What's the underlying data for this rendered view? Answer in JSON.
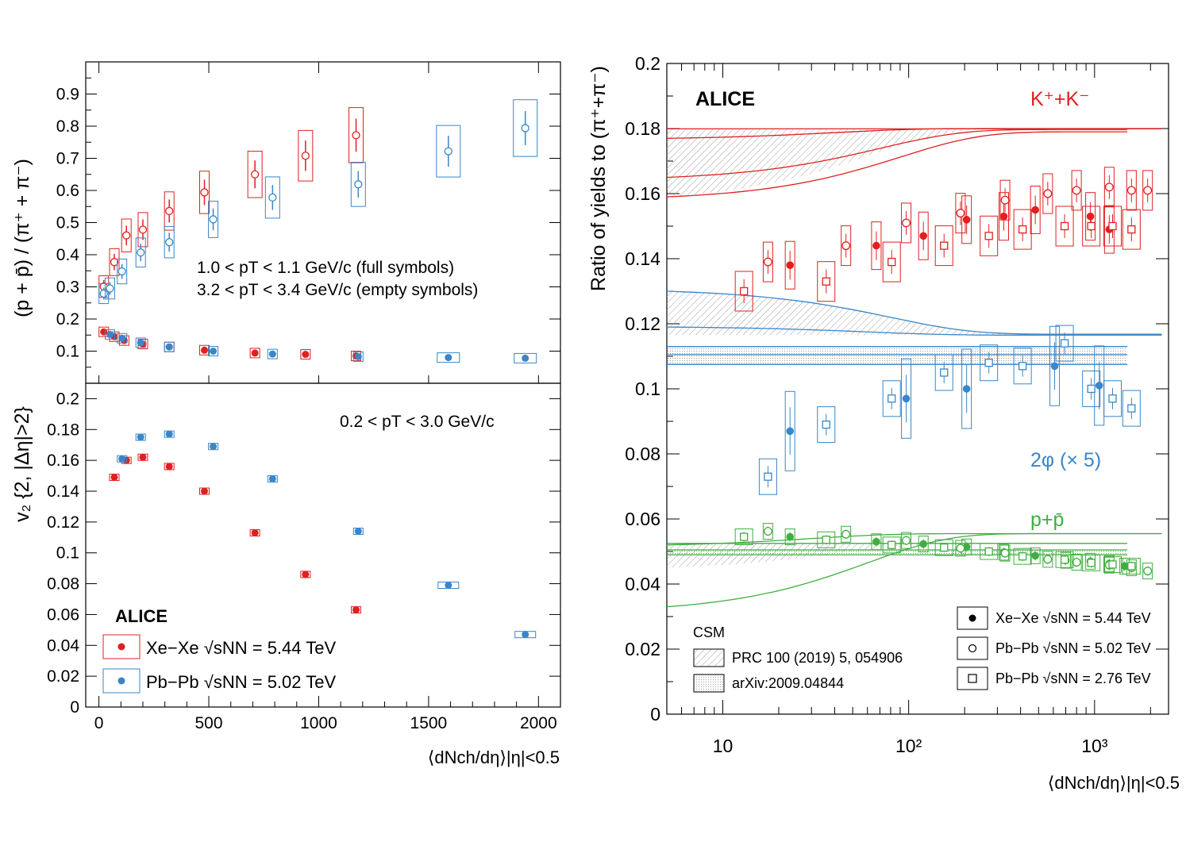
{
  "colors": {
    "red": "#e02020",
    "blue": "#3a86c8",
    "green": "#3fae3f",
    "axis": "#000000",
    "band": "#9aa0a6"
  },
  "chart_data": [
    {
      "type": "scatter",
      "panel": "top-left",
      "ylabel": "(p + p̄) / (π⁺ + π⁻)",
      "ylim": [
        0,
        1.0
      ],
      "yticks": [
        "0.1",
        "0.2",
        "0.3",
        "0.4",
        "0.5",
        "0.6",
        "0.7",
        "0.8",
        "0.9"
      ],
      "annotation_1": "1.0 < pT < 1.1 GeV/c (full symbols)",
      "annotation_2": "3.2 < pT < 3.4 GeV/c (empty symbols)",
      "series": [
        {
          "name": "Xe–Xe full",
          "color": "red",
          "marker": "filled",
          "x": [
            22,
            70,
            115,
            200,
            320,
            480,
            710,
            940,
            1170
          ],
          "y": [
            0.16,
            0.145,
            0.133,
            0.122,
            0.113,
            0.103,
            0.094,
            0.09,
            0.085
          ]
        },
        {
          "name": "Pb–Pb full",
          "color": "blue",
          "marker": "filled",
          "x": [
            50,
            105,
            190,
            320,
            520,
            790,
            1180,
            1590,
            1940
          ],
          "y": [
            0.152,
            0.14,
            0.126,
            0.113,
            0.1,
            0.091,
            0.083,
            0.08,
            0.078
          ]
        },
        {
          "name": "Xe–Xe empty",
          "color": "red",
          "marker": "open",
          "x": [
            22,
            70,
            125,
            200,
            320,
            480,
            710,
            940,
            1170
          ],
          "y": [
            0.301,
            0.377,
            0.46,
            0.478,
            0.536,
            0.594,
            0.65,
            0.708,
            0.772
          ]
        },
        {
          "name": "Pb–Pb empty",
          "color": "blue",
          "marker": "open",
          "x": [
            22,
            50,
            105,
            190,
            320,
            520,
            790,
            1180,
            1590,
            1940
          ],
          "y": [
            0.279,
            0.295,
            0.348,
            0.407,
            0.439,
            0.51,
            0.578,
            0.619,
            0.722,
            0.794
          ]
        }
      ]
    },
    {
      "type": "scatter",
      "panel": "bottom-left",
      "ylabel": "v2{2, |Δη|>2}",
      "xlabel": "⟨dNch/dη⟩|η|<0.5",
      "xlim": [
        -60,
        2100
      ],
      "ylim": [
        0,
        0.21
      ],
      "xticks": [
        "0",
        "500",
        "1000",
        "1500",
        "2000"
      ],
      "yticks": [
        "0",
        "0.02",
        "0.04",
        "0.06",
        "0.08",
        "0.1",
        "0.12",
        "0.14",
        "0.16",
        "0.18",
        "0.2"
      ],
      "annotation": "0.2 < pT < 3.0 GeV/c",
      "series": [
        {
          "name": "Xe–Xe √sNN = 5.44 TeV",
          "color": "red",
          "x": [
            70,
            125,
            200,
            320,
            480,
            710,
            940,
            1170
          ],
          "y": [
            0.149,
            0.16,
            0.162,
            0.156,
            0.14,
            0.113,
            0.086,
            0.063
          ]
        },
        {
          "name": "Pb–Pb √sNN = 5.02 TeV",
          "color": "blue",
          "x": [
            105,
            190,
            320,
            520,
            790,
            1180,
            1590,
            1940
          ],
          "y": [
            0.161,
            0.175,
            0.177,
            0.169,
            0.148,
            0.114,
            0.079,
            0.047
          ]
        }
      ]
    },
    {
      "type": "scatter",
      "panel": "right",
      "ylabel": "Ratio of yields to (π⁺+π⁻)",
      "xlabel": "⟨dNch/dη⟩|η|<0.5",
      "xscale": "log",
      "xlim": [
        5,
        2500
      ],
      "ylim": [
        0,
        0.2
      ],
      "xticks": [
        "10",
        "10²",
        "10³"
      ],
      "yticks": [
        "0",
        "0.02",
        "0.04",
        "0.06",
        "0.08",
        "0.1",
        "0.12",
        "0.14",
        "0.16",
        "0.18",
        "0.2"
      ],
      "series_labels": [
        "K⁺+K⁻",
        "2φ (× 5)",
        "p+p̄"
      ],
      "series": [
        {
          "name": "K XeXe",
          "color": "red",
          "marker": "filled",
          "x": [
            23,
            67,
            120,
            205,
            325,
            480,
            950,
            1200
          ],
          "y": [
            0.138,
            0.144,
            0.147,
            0.152,
            0.153,
            0.155,
            0.153,
            0.149
          ]
        },
        {
          "name": "K PbPb5",
          "color": "red",
          "marker": "open",
          "x": [
            17.5,
            46,
            97,
            190,
            330,
            560,
            800,
            1200,
            1580,
            1930
          ],
          "y": [
            0.139,
            0.144,
            0.151,
            0.154,
            0.158,
            0.16,
            0.161,
            0.162,
            0.161,
            0.161
          ]
        },
        {
          "name": "K PbPb2",
          "color": "red",
          "marker": "square",
          "x": [
            13,
            36,
            81,
            155,
            270,
            410,
            690,
            960,
            1250,
            1580
          ],
          "y": [
            0.13,
            0.133,
            0.139,
            0.144,
            0.147,
            0.149,
            0.15,
            0.15,
            0.15,
            0.149
          ]
        },
        {
          "name": "phi XeXe",
          "color": "blue",
          "marker": "filled",
          "x": [
            23,
            97,
            205,
            610,
            1060
          ],
          "y": [
            0.087,
            0.097,
            0.1,
            0.107,
            0.101
          ]
        },
        {
          "name": "phi PbPb2",
          "color": "blue",
          "marker": "square",
          "x": [
            17.5,
            36,
            81,
            155,
            270,
            410,
            690,
            960,
            1250,
            1580
          ],
          "y": [
            0.073,
            0.089,
            0.097,
            0.105,
            0.108,
            0.107,
            0.114,
            0.1,
            0.097,
            0.094
          ]
        },
        {
          "name": "p XeXe",
          "color": "green",
          "marker": "filled",
          "x": [
            23,
            67,
            120,
            205,
            325,
            480,
            700,
            950,
            1200,
            1450
          ],
          "y": [
            0.0545,
            0.053,
            0.0523,
            0.0514,
            0.0498,
            0.0487,
            0.0473,
            0.047,
            0.0463,
            0.0455
          ]
        },
        {
          "name": "p PbPb5",
          "color": "green",
          "marker": "open",
          "x": [
            17.5,
            46,
            97,
            190,
            330,
            560,
            800,
            1200,
            1580,
            1930
          ],
          "y": [
            0.0562,
            0.0553,
            0.0534,
            0.051,
            0.0495,
            0.0476,
            0.0467,
            0.0458,
            0.045,
            0.044
          ]
        },
        {
          "name": "p PbPb2",
          "color": "green",
          "marker": "square",
          "x": [
            13,
            36,
            81,
            155,
            270,
            410,
            690,
            960,
            1250,
            1580
          ],
          "y": [
            0.0545,
            0.0536,
            0.052,
            0.0512,
            0.05,
            0.0485,
            0.0475,
            0.0465,
            0.046,
            0.0455
          ]
        }
      ]
    }
  ],
  "labels": {
    "alice_right": "ALICE",
    "alice_left": "ALICE",
    "kk": "K⁺+K⁻",
    "phi": "2φ (× 5)",
    "pp": "p+p̄",
    "csm_title": "CSM",
    "csm_1": "PRC 100 (2019) 5, 054906",
    "csm_2": "arXiv:2009.04844",
    "leg_right_1": "Xe−Xe √sNN = 5.44 TeV",
    "leg_right_2": "Pb−Pb √sNN = 5.02 TeV",
    "leg_right_3": "Pb−Pb √sNN = 2.76 TeV",
    "leg_left_1": "Xe−Xe √sNN = 5.44 TeV",
    "leg_left_2": "Pb−Pb √sNN = 5.02 TeV",
    "ann_top_1": "1.0 < pT < 1.1 GeV/c (full symbols)",
    "ann_top_2": "3.2 < pT < 3.4 GeV/c (empty symbols)",
    "ann_bottom": "0.2 < pT < 3.0 GeV/c",
    "ylabel_top": "(p + p̄) / (π⁺ + π⁻)",
    "ylabel_bottom": "v₂ {2, |Δη|>2}",
    "ylabel_right": "Ratio of yields to (π⁺+π⁻)",
    "xlabel": "⟨dNch/dη⟩|η|<0.5"
  }
}
